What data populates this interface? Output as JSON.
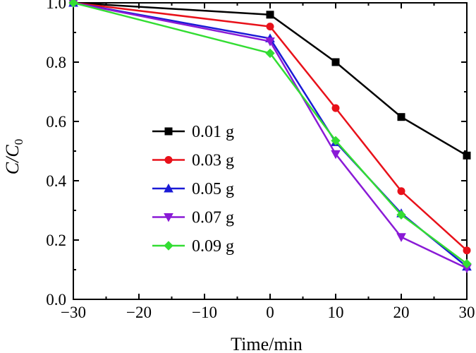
{
  "chart_data": {
    "type": "line",
    "xlabel": "Time/min",
    "ylabel": "C/C",
    "ylabel_subscript": "0",
    "xlim": [
      -30,
      30
    ],
    "ylim": [
      0.0,
      1.0
    ],
    "x_ticks": [
      "−30",
      "−20",
      "−10",
      "0",
      "10",
      "20",
      "30"
    ],
    "y_ticks": [
      "0.0",
      "0.2",
      "0.4",
      "0.6",
      "0.8",
      "1.0"
    ],
    "grid": false,
    "legend_position": "center-left",
    "x": [
      -30,
      0,
      10,
      20,
      30
    ],
    "series": [
      {
        "name": "0.01 g",
        "color": "#000000",
        "marker": "square",
        "values": [
          1.0,
          0.96,
          0.8,
          0.615,
          0.485
        ]
      },
      {
        "name": "0.03 g",
        "color": "#e8111a",
        "marker": "circle",
        "values": [
          1.0,
          0.92,
          0.645,
          0.365,
          0.165
        ]
      },
      {
        "name": "0.05 g",
        "color": "#1a1ad6",
        "marker": "triangle-up",
        "values": [
          1.0,
          0.88,
          0.53,
          0.29,
          0.11
        ]
      },
      {
        "name": "0.07 g",
        "color": "#8a1ad6",
        "marker": "triangle-down",
        "values": [
          1.0,
          0.87,
          0.49,
          0.21,
          0.105
        ]
      },
      {
        "name": "0.09 g",
        "color": "#33dd33",
        "marker": "diamond",
        "values": [
          1.0,
          0.83,
          0.535,
          0.285,
          0.12
        ]
      }
    ]
  }
}
